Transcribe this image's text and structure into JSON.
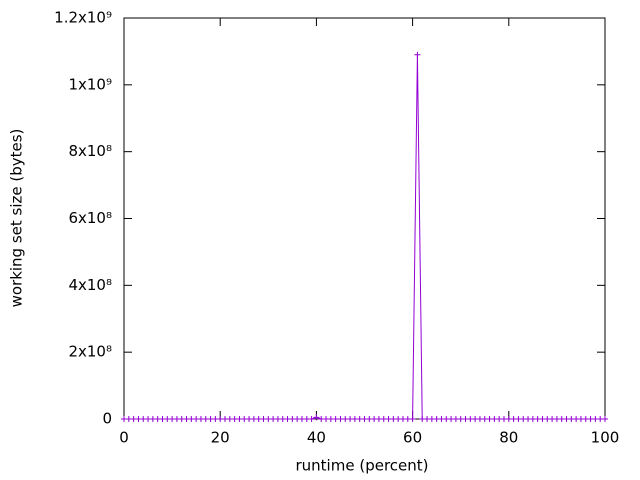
{
  "chart_data": {
    "type": "line",
    "xlabel": "runtime (percent)",
    "ylabel": "working set size (bytes)",
    "x": [
      0,
      1,
      2,
      3,
      4,
      5,
      6,
      7,
      8,
      9,
      10,
      11,
      12,
      13,
      14,
      15,
      16,
      17,
      18,
      19,
      20,
      21,
      22,
      23,
      24,
      25,
      26,
      27,
      28,
      29,
      30,
      31,
      32,
      33,
      34,
      35,
      36,
      37,
      38,
      39,
      40,
      41,
      42,
      43,
      44,
      45,
      46,
      47,
      48,
      49,
      50,
      51,
      52,
      53,
      54,
      55,
      56,
      57,
      58,
      59,
      60,
      61,
      62,
      63,
      64,
      65,
      66,
      67,
      68,
      69,
      70,
      71,
      72,
      73,
      74,
      75,
      76,
      77,
      78,
      79,
      80,
      81,
      82,
      83,
      84,
      85,
      86,
      87,
      88,
      89,
      90,
      91,
      92,
      93,
      94,
      95,
      96,
      97,
      98,
      99,
      100
    ],
    "series": [
      {
        "color": "#9400d3",
        "values": [
          0,
          0,
          0,
          0,
          0,
          0,
          0,
          0,
          0,
          0,
          0,
          0,
          0,
          0,
          0,
          0,
          0,
          0,
          0,
          0,
          0,
          0,
          0,
          0,
          0,
          0,
          0,
          0,
          0,
          0,
          0,
          0,
          0,
          0,
          0,
          0,
          0,
          0,
          0,
          0,
          5000000,
          0,
          0,
          0,
          0,
          0,
          0,
          0,
          0,
          0,
          0,
          0,
          0,
          0,
          0,
          0,
          0,
          0,
          0,
          0,
          0,
          1090000000,
          0,
          0,
          0,
          0,
          0,
          0,
          0,
          0,
          0,
          0,
          0,
          0,
          0,
          0,
          0,
          0,
          0,
          0,
          0,
          0,
          0,
          0,
          0,
          0,
          0,
          0,
          0,
          0,
          0,
          0,
          0,
          0,
          0,
          0,
          0,
          0,
          0,
          0,
          0
        ]
      }
    ],
    "xlim": [
      0,
      100
    ],
    "xticks": [
      0,
      20,
      40,
      60,
      80,
      100
    ],
    "ylim": [
      0,
      1200000000
    ],
    "yticks": [
      0,
      {
        "value": 200000000,
        "label": "2x10⁸"
      },
      {
        "value": 400000000,
        "label": "4x10⁸"
      },
      {
        "value": 600000000,
        "label": "6x10⁸"
      },
      {
        "value": 800000000,
        "label": "8x10⁸"
      },
      {
        "value": 1000000000,
        "label": "1x10⁹"
      },
      {
        "value": 1200000000,
        "label": "1.2x10⁹"
      }
    ],
    "grid": false
  }
}
